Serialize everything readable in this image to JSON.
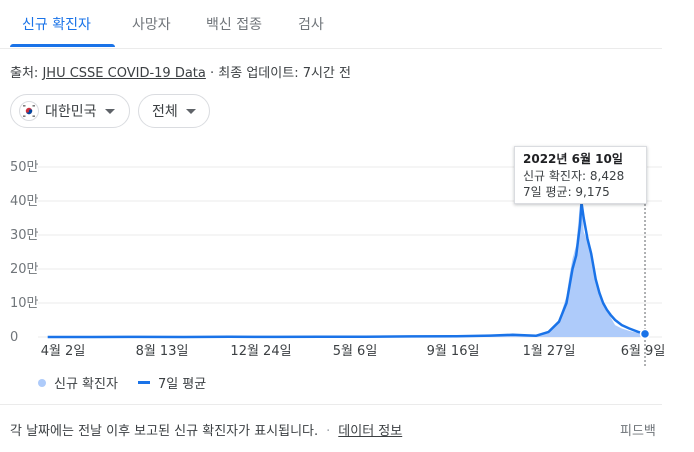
{
  "tabs": [
    {
      "label": "신규 확진자",
      "active": true
    },
    {
      "label": "사망자",
      "active": false
    },
    {
      "label": "백신 접종",
      "active": false
    },
    {
      "label": "검사",
      "active": false
    }
  ],
  "source": {
    "prefix": "출처:",
    "link": "JHU CSSE COVID-19 Data",
    "separator": "·",
    "updated": "최종 업데이트: 7시간 전"
  },
  "filters": {
    "country": {
      "label": "대한민국",
      "flag_icon": "korea-flag-icon"
    },
    "region": {
      "label": "전체"
    }
  },
  "colors": {
    "accent": "#1a73e8",
    "area": "#aecbfa",
    "grid": "#ebebeb"
  },
  "chart_data": {
    "type": "area",
    "y_tick_labels": [
      "0",
      "10만",
      "20만",
      "30만",
      "40만",
      "50만"
    ],
    "y_ticks": [
      0,
      100000,
      200000,
      300000,
      400000,
      500000
    ],
    "ylim": [
      0,
      500000
    ],
    "x_tick_labels": [
      "4월 2일",
      "8월 13일",
      "12월 24일",
      "5월 6일",
      "9월 16일",
      "1월 27일",
      "6월 9일"
    ],
    "x_dates": [
      "2020-04-02",
      "2020-06-01",
      "2020-08-01",
      "2020-10-01",
      "2020-12-01",
      "2021-02-01",
      "2021-04-01",
      "2021-06-01",
      "2021-08-01",
      "2021-10-01",
      "2021-11-15",
      "2021-12-15",
      "2022-01-15",
      "2022-02-01",
      "2022-02-15",
      "2022-02-25",
      "2022-03-01",
      "2022-03-05",
      "2022-03-10",
      "2022-03-15",
      "2022-03-17",
      "2022-03-20",
      "2022-03-25",
      "2022-03-30",
      "2022-04-05",
      "2022-04-10",
      "2022-04-15",
      "2022-04-20",
      "2022-04-25",
      "2022-05-01",
      "2022-05-10",
      "2022-05-20",
      "2022-06-01",
      "2022-06-10"
    ],
    "x_start": "2020-03-20",
    "x_end": "2022-06-14",
    "new_cases": [
      100,
      50,
      300,
      100,
      600,
      400,
      500,
      600,
      1800,
      2100,
      4000,
      6500,
      3600,
      15000,
      50000,
      120000,
      180000,
      230000,
      270000,
      390000,
      420000,
      310000,
      280000,
      260000,
      185000,
      120000,
      105000,
      80000,
      58000,
      35000,
      25000,
      18000,
      12000,
      8428
    ],
    "avg_7day": [
      100,
      50,
      300,
      100,
      600,
      400,
      500,
      600,
      1800,
      2100,
      4000,
      6500,
      3600,
      15000,
      45000,
      100000,
      150000,
      200000,
      240000,
      330000,
      395000,
      350000,
      290000,
      245000,
      170000,
      130000,
      100000,
      80000,
      65000,
      50000,
      35000,
      25000,
      15000,
      9175
    ],
    "legend": [
      {
        "name": "신규 확진자",
        "marker": "dot"
      },
      {
        "name": "7일 평균",
        "marker": "line"
      }
    ],
    "tooltip": {
      "date": "2022년 6월 10일",
      "new_cases": "신규 확진자: 8,428",
      "average": "7일 평균: 9,175"
    }
  },
  "footer": {
    "note": "각 날짜에는 전날 이후 보고된 신규 확진자가 표시됩니다.",
    "separator": "·",
    "data_info_link": "데이터 정보",
    "feedback": "피드백"
  }
}
